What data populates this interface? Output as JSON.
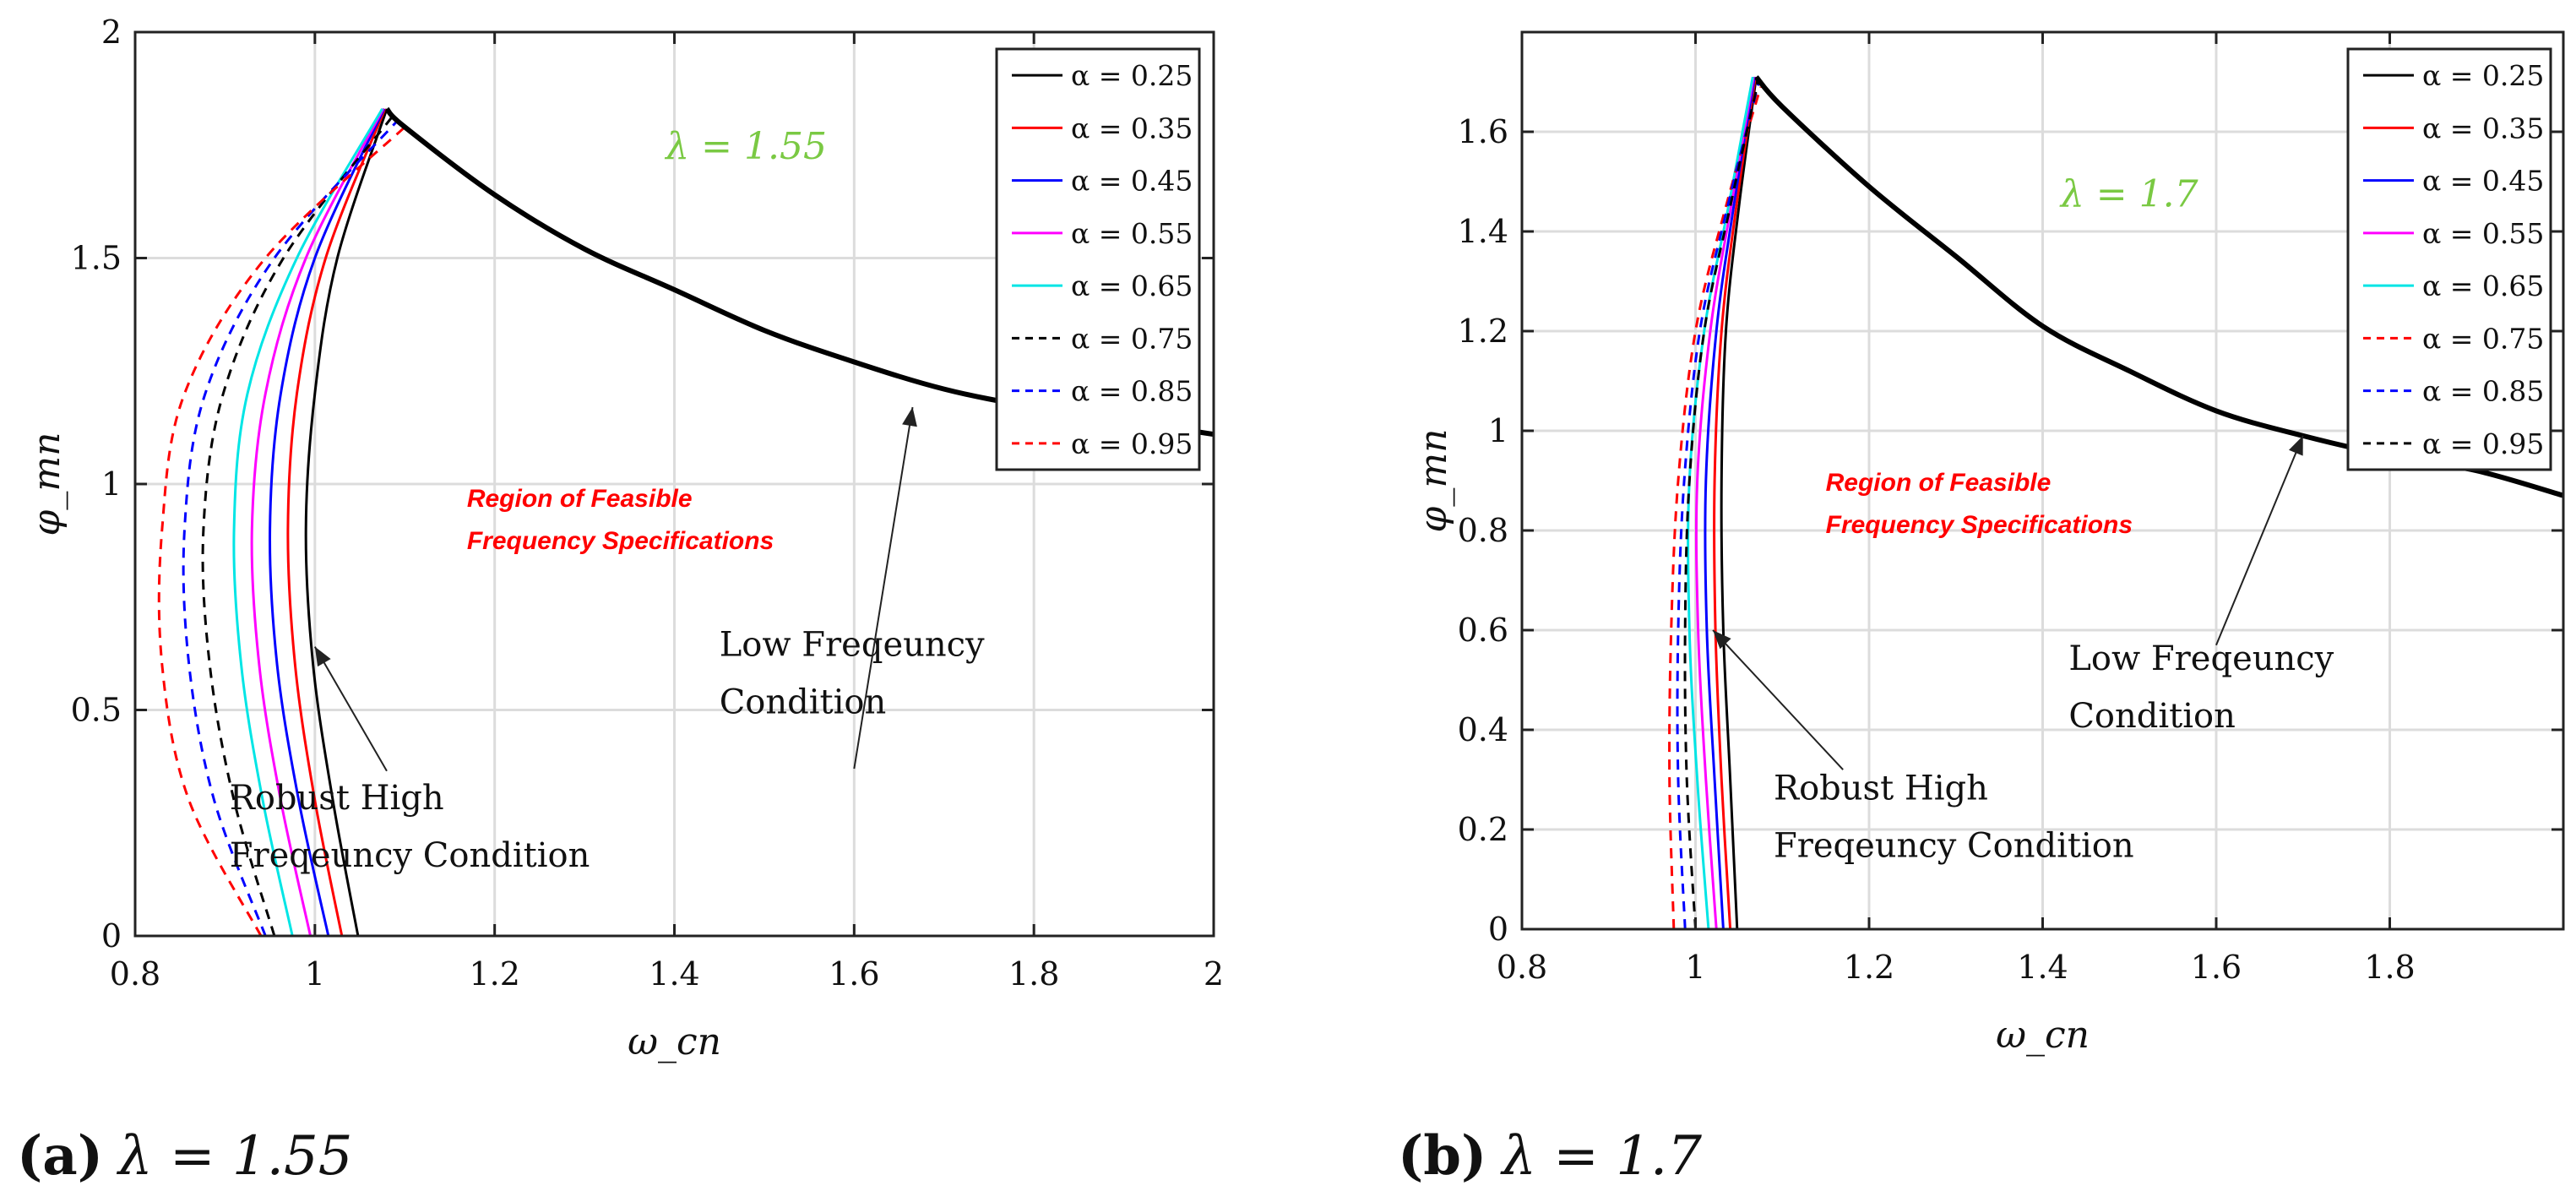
{
  "figure": {
    "colors": {
      "grid": "#dcdcdc",
      "axis": "#222222",
      "lambda_text": "#7ac943",
      "region_text": "#ff0000"
    }
  },
  "chart_data": [
    {
      "type": "line",
      "panel_label": "(a)",
      "caption": "λ = 1.55",
      "xlabel": "ω_cn",
      "ylabel": "φ_mn",
      "xlim": [
        0.8,
        2.0
      ],
      "ylim": [
        0,
        2.0
      ],
      "xticks": [
        0.8,
        1,
        1.2,
        1.4,
        1.6,
        1.8,
        2
      ],
      "xtick_labels": [
        "0.8",
        "1",
        "1.2",
        "1.4",
        "1.6",
        "1.8",
        "2"
      ],
      "yticks": [
        0,
        0.5,
        1,
        1.5,
        2
      ],
      "ytick_labels": [
        "0",
        "0.5",
        "1",
        "1.5",
        "2"
      ],
      "grid": true,
      "legend_position": "top-right",
      "lambda_label": "λ = 1.55",
      "region_label_line1": "Region of Feasible",
      "region_label_line2": "Frequency Specifications",
      "annotations": [
        {
          "name": "low-frequency-annotation",
          "lines": [
            "Low Freqeuncy",
            "Condition"
          ],
          "text_at": [
            1.45,
            0.62
          ],
          "arrow_from": [
            1.6,
            0.37
          ],
          "arrow_to": [
            1.665,
            1.17
          ]
        },
        {
          "name": "robust-high-frequency-annotation",
          "lines": [
            "Robust High",
            "Freqeuncy Condition"
          ],
          "text_at": [
            0.905,
            0.28
          ],
          "arrow_from": [
            1.08,
            0.365
          ],
          "arrow_to": [
            1.0,
            0.64
          ]
        }
      ],
      "low_frequency_curve": {
        "name": "Low Frequency Condition",
        "x": [
          1.08,
          1.1,
          1.2,
          1.3,
          1.4,
          1.5,
          1.6,
          1.7,
          1.8,
          1.9,
          2.0
        ],
        "y": [
          1.83,
          1.79,
          1.64,
          1.52,
          1.43,
          1.34,
          1.27,
          1.21,
          1.17,
          1.14,
          1.11
        ]
      },
      "series": [
        {
          "name": "α = 0.25",
          "color": "#000000",
          "dash": "solid",
          "x": [
            1.048,
            1.02,
            0.998,
            0.99,
            1.0,
            1.025,
            1.08
          ],
          "y": [
            0,
            0.3,
            0.6,
            0.9,
            1.2,
            1.5,
            1.83
          ]
        },
        {
          "name": "α = 0.35",
          "color": "#ff0000",
          "dash": "solid",
          "x": [
            1.03,
            1.0,
            0.978,
            0.97,
            0.98,
            1.012,
            1.078
          ],
          "y": [
            0,
            0.3,
            0.6,
            0.9,
            1.2,
            1.5,
            1.83
          ]
        },
        {
          "name": "α = 0.45",
          "color": "#0000ff",
          "dash": "solid",
          "x": [
            1.015,
            0.982,
            0.958,
            0.95,
            0.962,
            1.0,
            1.077
          ],
          "y": [
            0,
            0.3,
            0.6,
            0.9,
            1.2,
            1.5,
            1.83
          ]
        },
        {
          "name": "α = 0.55",
          "color": "#ff00ff",
          "dash": "solid",
          "x": [
            0.995,
            0.962,
            0.938,
            0.93,
            0.945,
            0.99,
            1.076
          ],
          "y": [
            0,
            0.3,
            0.6,
            0.9,
            1.2,
            1.5,
            1.83
          ]
        },
        {
          "name": "α = 0.65",
          "color": "#00e5e5",
          "dash": "solid",
          "x": [
            0.975,
            0.942,
            0.918,
            0.91,
            0.925,
            0.98,
            1.075
          ],
          "y": [
            0,
            0.3,
            0.6,
            0.9,
            1.2,
            1.5,
            1.83
          ]
        },
        {
          "name": "α = 0.75",
          "color": "#000000",
          "dash": "dashed",
          "x": [
            0.955,
            0.91,
            0.883,
            0.876,
            0.898,
            0.965,
            1.085
          ],
          "y": [
            0,
            0.3,
            0.6,
            0.9,
            1.2,
            1.5,
            1.81
          ]
        },
        {
          "name": "α = 0.85",
          "color": "#0000ff",
          "dash": "dashed",
          "x": [
            0.945,
            0.888,
            0.86,
            0.855,
            0.878,
            0.955,
            1.09
          ],
          "y": [
            0,
            0.3,
            0.6,
            0.9,
            1.2,
            1.5,
            1.8
          ]
        },
        {
          "name": "α = 0.95",
          "color": "#ff0000",
          "dash": "dashed",
          "x": [
            0.94,
            0.86,
            0.83,
            0.83,
            0.855,
            0.945,
            1.1
          ],
          "y": [
            0,
            0.3,
            0.6,
            0.9,
            1.2,
            1.5,
            1.79
          ]
        }
      ]
    },
    {
      "type": "line",
      "panel_label": "(b)",
      "caption": "λ = 1.7",
      "xlabel": "ω_cn",
      "ylabel": "φ_mn",
      "xlim": [
        0.8,
        2.0
      ],
      "ylim": [
        0,
        1.8
      ],
      "xticks": [
        0.8,
        1,
        1.2,
        1.4,
        1.6,
        1.8
      ],
      "xtick_labels": [
        "0.8",
        "1",
        "1.2",
        "1.4",
        "1.6",
        "1.8"
      ],
      "yticks": [
        0,
        0.2,
        0.4,
        0.6,
        0.8,
        1,
        1.2,
        1.4,
        1.6
      ],
      "ytick_labels": [
        "0",
        "0.2",
        "0.4",
        "0.6",
        "0.8",
        "1",
        "1.2",
        "1.4",
        "1.6"
      ],
      "grid": true,
      "legend_position": "top-right",
      "lambda_label": "λ = 1.7",
      "region_label_line1": "Region of Feasible",
      "region_label_line2": "Frequency Specifications",
      "annotations": [
        {
          "name": "low-frequency-annotation",
          "lines": [
            "Low Freqeuncy",
            "Condition"
          ],
          "text_at": [
            1.43,
            0.52
          ],
          "arrow_from": [
            1.6,
            0.57
          ],
          "arrow_to": [
            1.7,
            0.99
          ]
        },
        {
          "name": "robust-high-frequency-annotation",
          "lines": [
            "Robust High",
            "Freqeuncy Condition"
          ],
          "text_at": [
            1.09,
            0.26
          ],
          "arrow_from": [
            1.17,
            0.32
          ],
          "arrow_to": [
            1.02,
            0.6
          ]
        }
      ],
      "low_frequency_curve": {
        "name": "Low Frequency Condition",
        "x": [
          1.07,
          1.1,
          1.2,
          1.3,
          1.4,
          1.5,
          1.6,
          1.7,
          1.8,
          1.9,
          2.0
        ],
        "y": [
          1.71,
          1.65,
          1.49,
          1.35,
          1.21,
          1.12,
          1.04,
          0.99,
          0.95,
          0.92,
          0.87
        ]
      },
      "series": [
        {
          "name": "α = 0.25",
          "color": "#000000",
          "dash": "solid",
          "x": [
            1.048,
            1.04,
            1.032,
            1.03,
            1.035,
            1.05,
            1.07
          ],
          "y": [
            0,
            0.3,
            0.6,
            0.9,
            1.2,
            1.45,
            1.71
          ]
        },
        {
          "name": "α = 0.35",
          "color": "#ff0000",
          "dash": "solid",
          "x": [
            1.04,
            1.03,
            1.023,
            1.022,
            1.03,
            1.047,
            1.069
          ],
          "y": [
            0,
            0.3,
            0.6,
            0.9,
            1.2,
            1.45,
            1.71
          ]
        },
        {
          "name": "α = 0.45",
          "color": "#0000ff",
          "dash": "solid",
          "x": [
            1.032,
            1.022,
            1.013,
            1.012,
            1.024,
            1.044,
            1.068
          ],
          "y": [
            0,
            0.3,
            0.6,
            0.9,
            1.2,
            1.45,
            1.71
          ]
        },
        {
          "name": "α = 0.55",
          "color": "#ff00ff",
          "dash": "solid",
          "x": [
            1.024,
            1.012,
            1.003,
            1.002,
            1.017,
            1.041,
            1.067
          ],
          "y": [
            0,
            0.3,
            0.6,
            0.9,
            1.2,
            1.45,
            1.71
          ]
        },
        {
          "name": "α = 0.65",
          "color": "#00e5e5",
          "dash": "solid",
          "x": [
            1.015,
            1.002,
            0.993,
            0.993,
            1.01,
            1.038,
            1.066
          ],
          "y": [
            0,
            0.3,
            0.6,
            0.9,
            1.2,
            1.45,
            1.71
          ]
        },
        {
          "name": "α = 0.75",
          "color": "#ff0000",
          "dash": "dashed",
          "x": [
            0.975,
            0.97,
            0.972,
            0.98,
            1.0,
            1.035,
            1.075
          ],
          "y": [
            0,
            0.3,
            0.6,
            0.9,
            1.2,
            1.45,
            1.69
          ]
        },
        {
          "name": "α = 0.85",
          "color": "#0000ff",
          "dash": "dashed",
          "x": [
            0.988,
            0.98,
            0.98,
            0.987,
            1.005,
            1.037,
            1.073
          ],
          "y": [
            0,
            0.3,
            0.6,
            0.9,
            1.2,
            1.45,
            1.7
          ]
        },
        {
          "name": "α = 0.95",
          "color": "#000000",
          "dash": "dashed",
          "x": [
            1.0,
            0.99,
            0.988,
            0.993,
            1.01,
            1.04,
            1.072
          ],
          "y": [
            0,
            0.3,
            0.6,
            0.9,
            1.2,
            1.45,
            1.7
          ]
        }
      ]
    }
  ]
}
